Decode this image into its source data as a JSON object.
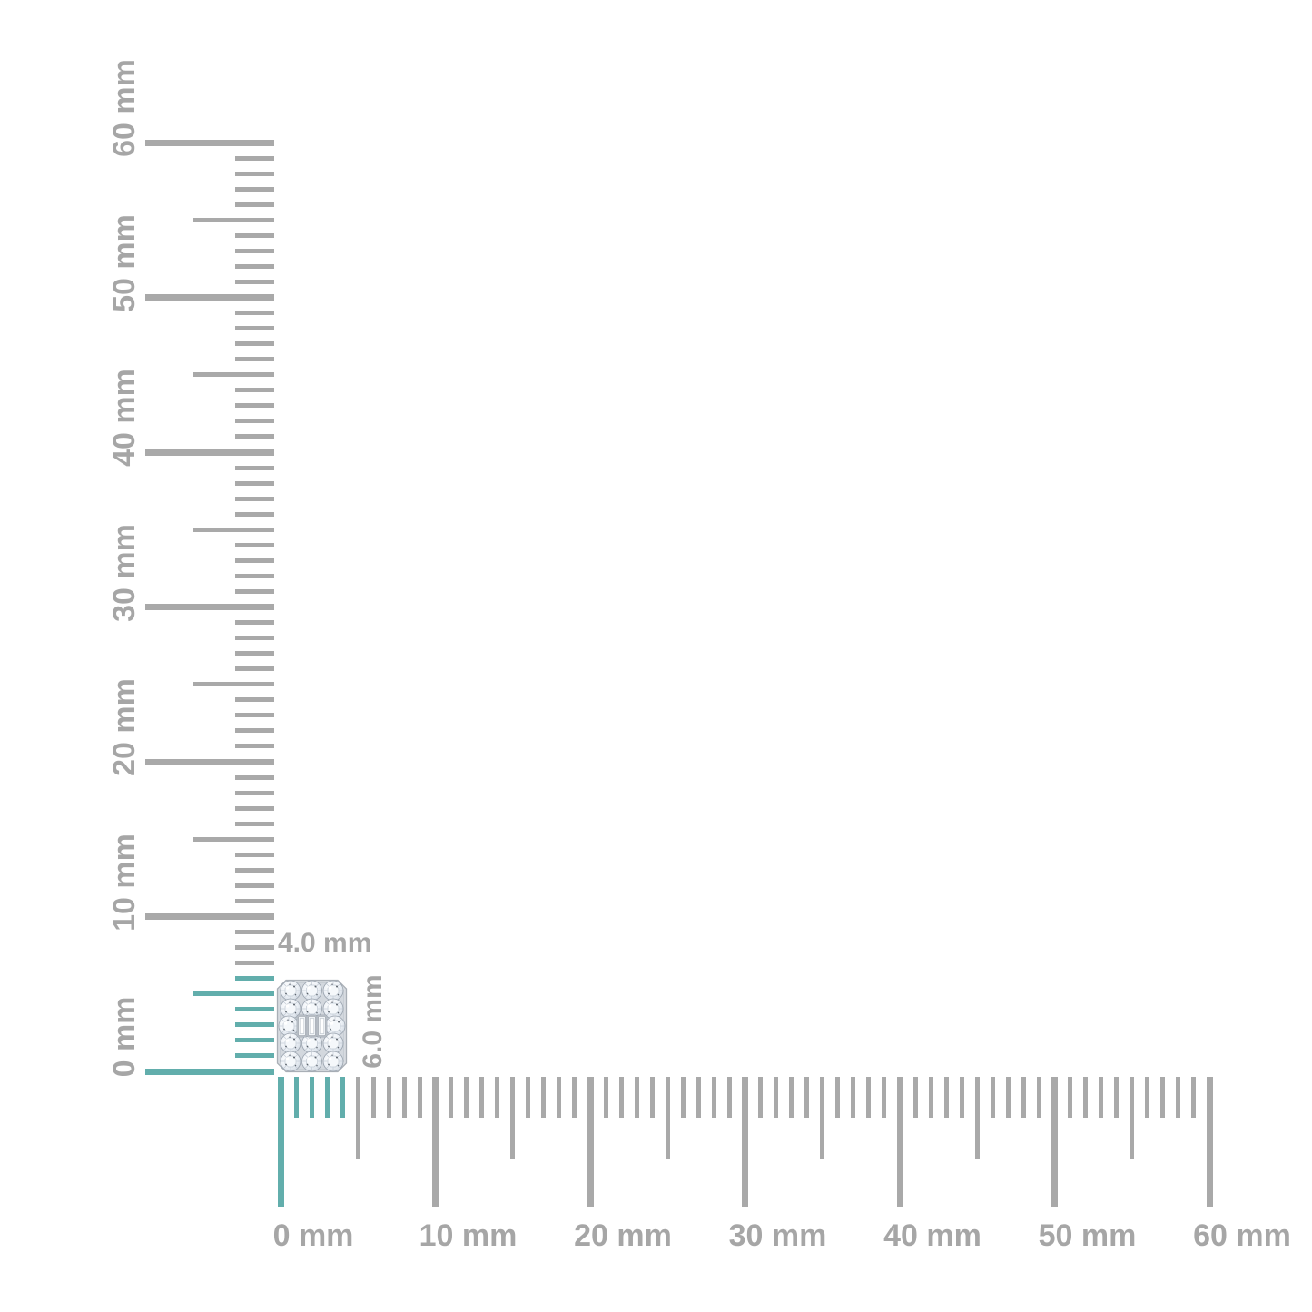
{
  "page": {
    "description": "Jewelry size-reference image: diamond cluster stud shown at the corner of two millimeter rulers"
  },
  "rulers": {
    "unit": "mm",
    "tick_labels": [
      "0 mm",
      "10 mm",
      "20 mm",
      "30 mm",
      "40 mm",
      "50 mm",
      "60 mm"
    ],
    "vertical": {
      "min_mm": 0,
      "max_mm": 60,
      "major_step_mm": 10,
      "half_step_mm": 5,
      "minor_step_mm": 1,
      "highlight_to_mm": 6
    },
    "horizontal": {
      "min_mm": 0,
      "max_mm": 60,
      "major_step_mm": 10,
      "half_step_mm": 5,
      "minor_step_mm": 1,
      "highlight_to_mm": 4
    }
  },
  "item": {
    "name": "emerald-shape diamond cluster stud",
    "width_label": "4.0 mm",
    "height_label": "6.0 mm"
  },
  "colors": {
    "highlight_teal": "#62AEAC",
    "tick_gray": "#A9A9A9",
    "label_gray": "#A6A6A6",
    "metal": "#D7DBE0",
    "metal_edge": "#A9AFB6",
    "stone": "#F4F7FB",
    "stone_edge": "#9AA3AE",
    "speck": "#3F4650"
  }
}
